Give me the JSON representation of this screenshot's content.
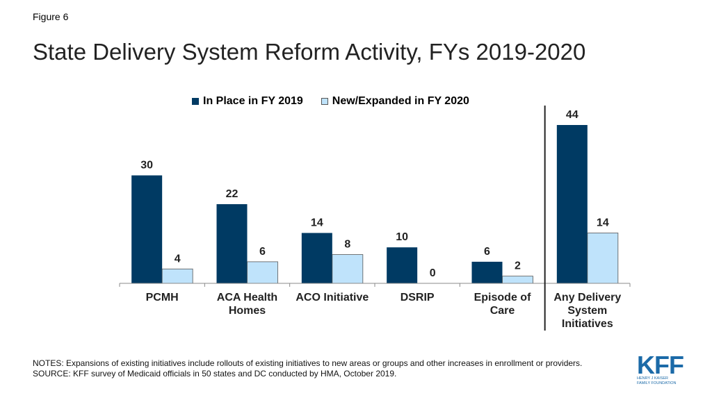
{
  "figure_label": "Figure 6",
  "title": "State Delivery System Reform Activity, FYs 2019-2020",
  "legend": [
    {
      "label": "In Place in FY 2019",
      "color": "#003a63"
    },
    {
      "label": "New/Expanded in FY 2020",
      "color": "#bfe3fb"
    }
  ],
  "chart_data": {
    "type": "bar",
    "categories": [
      [
        "PCMH"
      ],
      [
        "ACA Health",
        "Homes"
      ],
      [
        "ACO Initiative"
      ],
      [
        "DSRIP"
      ],
      [
        "Episode of",
        "Care"
      ],
      [
        "Any Delivery",
        "System",
        "Initiatives"
      ]
    ],
    "series": [
      {
        "name": "In Place in FY 2019",
        "color": "#003a63",
        "values": [
          30,
          22,
          14,
          10,
          6,
          44
        ]
      },
      {
        "name": "New/Expanded in FY 2020",
        "color": "#bfe3fb",
        "values": [
          4,
          6,
          8,
          0,
          2,
          14
        ]
      }
    ],
    "ylim": [
      0,
      44
    ],
    "grid": false,
    "legend_position": "top",
    "separator_before_category": 5
  },
  "notes": "NOTES: Expansions of existing initiatives include rollouts of existing initiatives to new areas or groups and other increases in enrollment or providers.",
  "source": "SOURCE: KFF survey of Medicaid officials in 50 states and DC conducted by HMA, October 2019.",
  "logo": {
    "mark": "KFF",
    "line1": "HENRY J KAISER",
    "line2": "FAMILY FOUNDATION",
    "color": "#1b6aa8"
  }
}
